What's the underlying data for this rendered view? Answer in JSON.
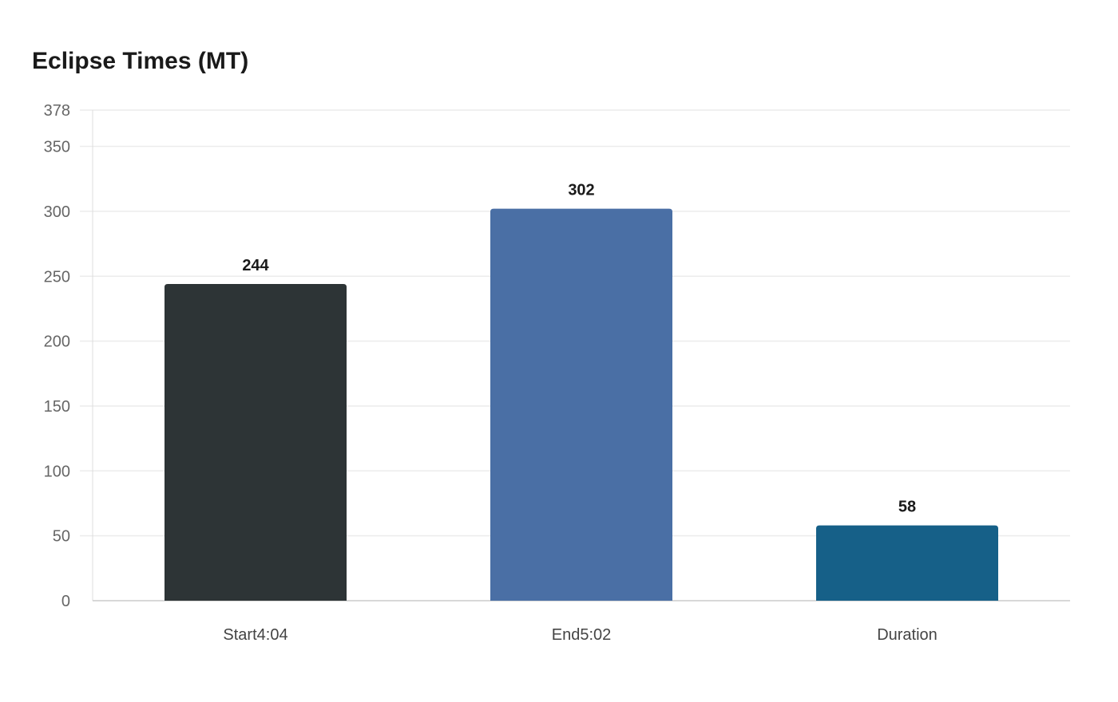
{
  "chart_data": {
    "type": "bar",
    "title": "Eclipse Times (MT)",
    "categories": [
      "Start4:04",
      "End5:02",
      "Duration"
    ],
    "values": [
      244,
      302,
      58
    ],
    "colors": [
      "#2d3436",
      "#4a6fa5",
      "#166088"
    ],
    "xlabel": "",
    "ylabel": "",
    "ylim": [
      0,
      378
    ],
    "yticks": [
      0,
      50,
      100,
      150,
      200,
      250,
      300,
      350,
      378
    ],
    "grid": true,
    "legend": "none"
  }
}
